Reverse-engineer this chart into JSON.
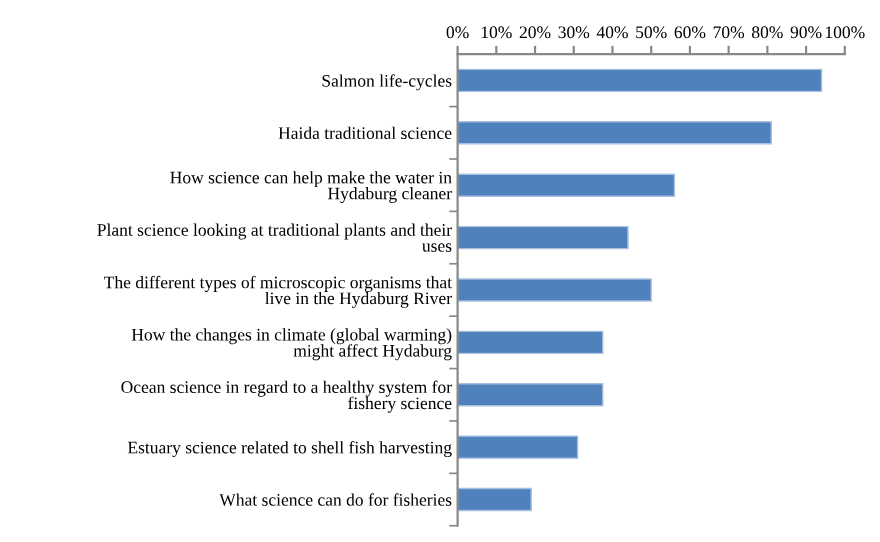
{
  "chart_data": {
    "type": "bar",
    "orientation": "horizontal",
    "categories": [
      "Salmon life-cycles",
      "Haida traditional science",
      "How science can help make the water in\nHydaburg cleaner",
      "Plant science looking at traditional plants and their\nuses",
      "The different types of microscopic organisms that\nlive in the Hydaburg River",
      "How the changes in climate (global warming)\nmight affect Hydaburg",
      "Ocean science in regard to a healthy system for\nfishery science",
      "Estuary science related to shell fish harvesting",
      "What science can do for fisheries"
    ],
    "values": [
      94,
      81,
      56,
      44,
      50,
      37.5,
      37.5,
      31,
      19
    ],
    "color": "#4f81bd",
    "xlim": [
      0,
      100
    ],
    "xticks": [
      {
        "value": 0,
        "label": "0%"
      },
      {
        "value": 10,
        "label": "10%"
      },
      {
        "value": 20,
        "label": "20%"
      },
      {
        "value": 30,
        "label": "30%"
      },
      {
        "value": 40,
        "label": "40%"
      },
      {
        "value": 50,
        "label": "50%"
      },
      {
        "value": 60,
        "label": "60%"
      },
      {
        "value": 70,
        "label": "70%"
      },
      {
        "value": 80,
        "label": "80%"
      },
      {
        "value": 90,
        "label": "90%"
      },
      {
        "value": 100,
        "label": "100%"
      }
    ],
    "grid": false,
    "legend": false
  }
}
